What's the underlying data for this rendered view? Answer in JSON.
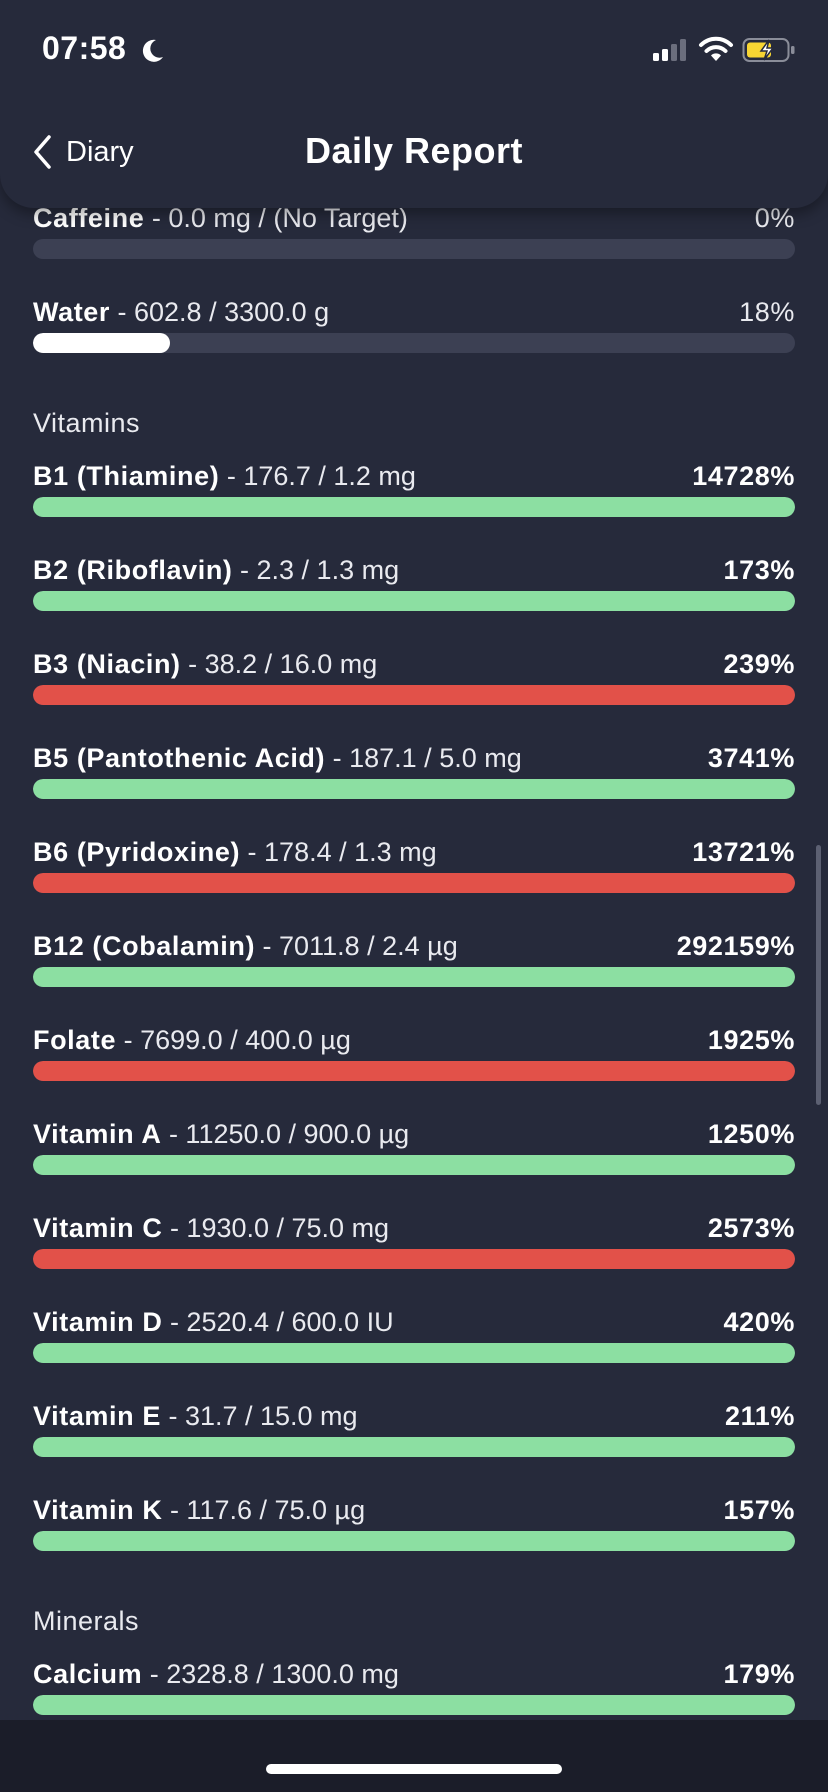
{
  "status_bar": {
    "time": "07:58"
  },
  "nav": {
    "back_label": "Diary",
    "title": "Daily Report"
  },
  "rows_top": [
    {
      "name": "Caffeine",
      "detail": " - 0.0 mg / (No Target)",
      "percent": "0%",
      "progress": 0,
      "bar": "track-only"
    },
    {
      "name": "Water",
      "detail": " - 602.8 / 3300.0 g",
      "percent": "18%",
      "progress": 0.18,
      "bar": "white"
    }
  ],
  "vitamins": {
    "title": "Vitamins",
    "items": [
      {
        "name": "B1 (Thiamine)",
        "detail": " - 176.7 / 1.2 mg",
        "percent": "14728%",
        "status": "green"
      },
      {
        "name": "B2 (Riboflavin)",
        "detail": " - 2.3 / 1.3 mg",
        "percent": "173%",
        "status": "green"
      },
      {
        "name": "B3 (Niacin)",
        "detail": " - 38.2 / 16.0 mg",
        "percent": "239%",
        "status": "red"
      },
      {
        "name": "B5 (Pantothenic Acid)",
        "detail": " - 187.1 / 5.0 mg",
        "percent": "3741%",
        "status": "green"
      },
      {
        "name": "B6 (Pyridoxine)",
        "detail": " - 178.4 / 1.3 mg",
        "percent": "13721%",
        "status": "red"
      },
      {
        "name": "B12 (Cobalamin)",
        "detail": " - 7011.8 / 2.4 µg",
        "percent": "292159%",
        "status": "green"
      },
      {
        "name": "Folate",
        "detail": " - 7699.0 / 400.0 µg",
        "percent": "1925%",
        "status": "red"
      },
      {
        "name": "Vitamin A",
        "detail": " - 11250.0 / 900.0 µg",
        "percent": "1250%",
        "status": "green"
      },
      {
        "name": "Vitamin C",
        "detail": " - 1930.0 / 75.0 mg",
        "percent": "2573%",
        "status": "red"
      },
      {
        "name": "Vitamin D",
        "detail": " - 2520.4 / 600.0 IU",
        "percent": "420%",
        "status": "green"
      },
      {
        "name": "Vitamin E",
        "detail": " - 31.7 / 15.0 mg",
        "percent": "211%",
        "status": "green"
      },
      {
        "name": "Vitamin K",
        "detail": " - 117.6 / 75.0 µg",
        "percent": "157%",
        "status": "green"
      }
    ]
  },
  "minerals": {
    "title": "Minerals",
    "items": [
      {
        "name": "Calcium",
        "detail": " - 2328.8 / 1300.0 mg",
        "percent": "179%",
        "status": "green"
      }
    ]
  },
  "colors": {
    "background": "#262a3b",
    "track": "#3c4053",
    "green": "#8cdfa2",
    "red": "#e25149",
    "white": "#ffffff",
    "battery_charge": "#f7d533"
  }
}
